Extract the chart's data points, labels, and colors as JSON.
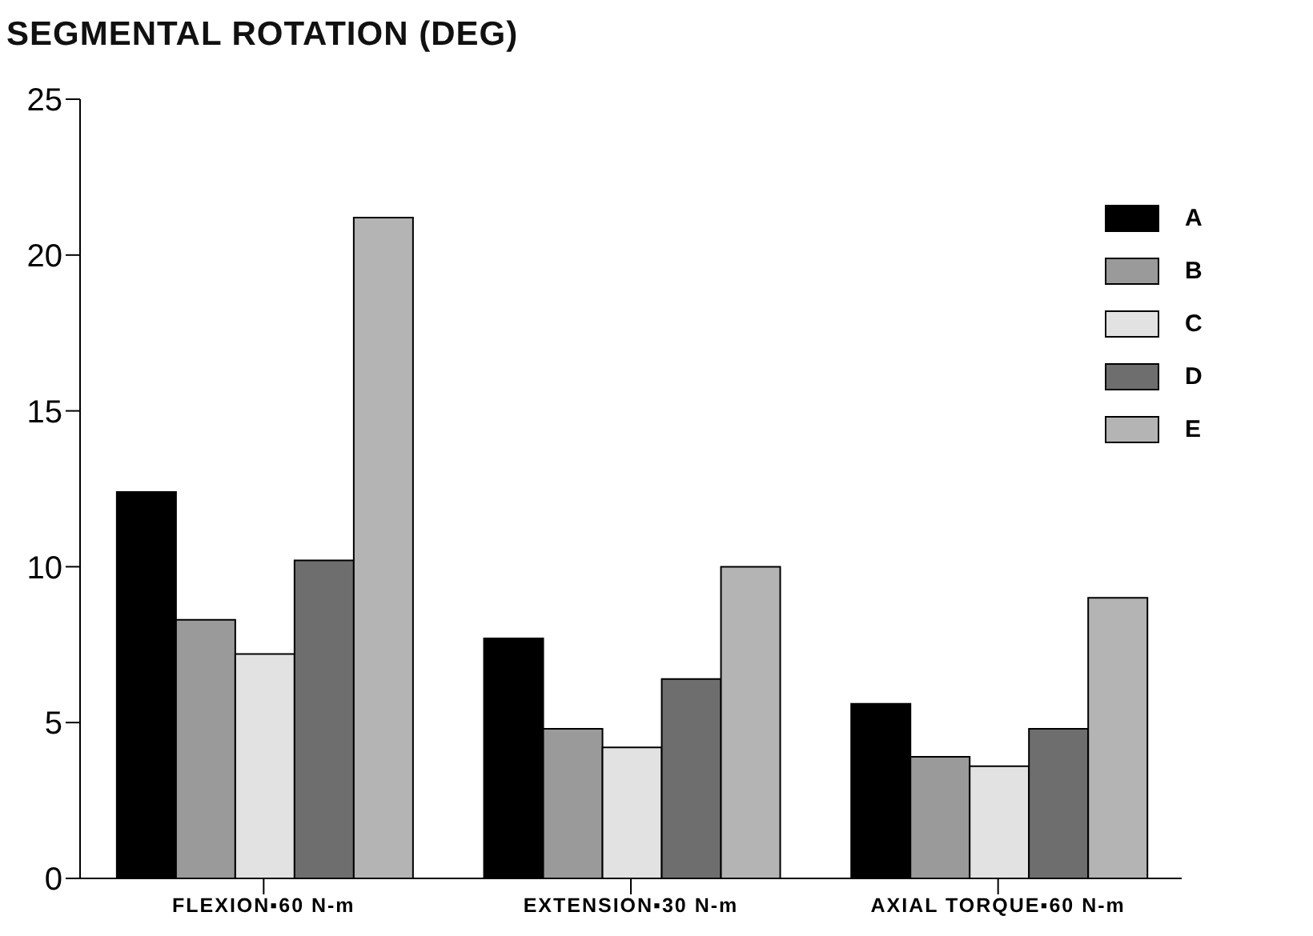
{
  "chart_data": {
    "type": "bar",
    "title": "SEGMENTAL ROTATION (DEG)",
    "categories": [
      "FLEXION▪60 N-m",
      "EXTENSION▪30 N-m",
      "AXIAL TORQUE▪60 N-m"
    ],
    "series": [
      {
        "name": "A",
        "color": "#000000",
        "values": [
          12.4,
          7.7,
          5.6
        ]
      },
      {
        "name": "B",
        "color": "#9a9a9a",
        "values": [
          8.3,
          4.8,
          3.9
        ]
      },
      {
        "name": "C",
        "color": "#e2e2e2",
        "values": [
          7.2,
          4.2,
          3.6
        ]
      },
      {
        "name": "D",
        "color": "#6e6e6e",
        "values": [
          10.2,
          6.4,
          4.8
        ]
      },
      {
        "name": "E",
        "color": "#b4b4b4",
        "values": [
          21.2,
          10.0,
          9.0
        ]
      }
    ],
    "ylim": [
      0,
      25
    ],
    "yticks": [
      0,
      5,
      10,
      15,
      20,
      25
    ],
    "grid": false,
    "legend": "top right"
  }
}
